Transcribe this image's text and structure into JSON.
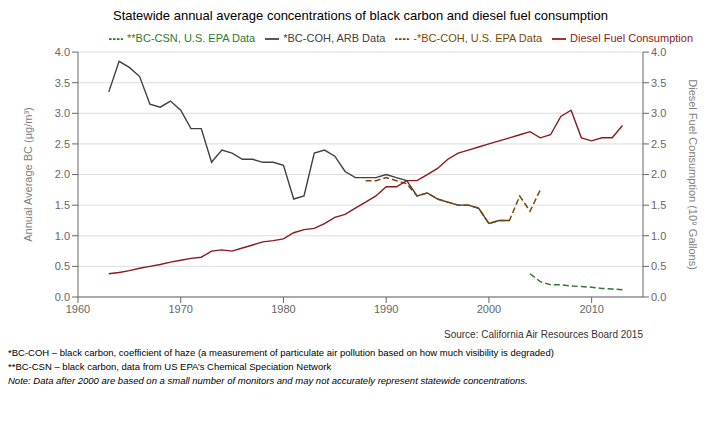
{
  "chart_data": {
    "type": "line",
    "title": "Statewide annual average concentrations of black carbon and diesel fuel consumption",
    "ylabel": "Annual Average BC (μg/m³)",
    "y2label": "Diesel Fuel Consumption (10⁹ Gallons)",
    "xlim": [
      1960,
      2015
    ],
    "xticks": [
      1960,
      1970,
      1980,
      1990,
      2000,
      2010
    ],
    "ylim": [
      0.0,
      4.0
    ],
    "yticks": [
      {
        "value": 0.0,
        "label": "0.0"
      },
      0.5,
      {
        "value": 1.0,
        "label": "1.0"
      },
      1.5,
      {
        "value": 2.0,
        "label": "2.0"
      },
      2.5,
      {
        "value": 3.0,
        "label": "3.0"
      },
      3.5,
      {
        "value": 4.0,
        "label": "4.0"
      }
    ],
    "y2lim": [
      0.0,
      4.0
    ],
    "y2ticks": [
      {
        "value": 0.0,
        "label": "0.0"
      },
      0.5,
      {
        "value": 1.0,
        "label": "1.0"
      },
      1.5,
      {
        "value": 2.0,
        "label": "2.0"
      },
      2.5,
      {
        "value": 3.0,
        "label": "3.0"
      },
      3.5,
      {
        "value": 4.0,
        "label": "4.0"
      }
    ],
    "grid": "y",
    "legend": "upper right",
    "annotations": [
      "Source: California Air Resources Board 2015",
      "*BC-COH – black carbon, coefficient of haze (a measurement of particulate air pollution based on how much visibility is degraded)",
      "**BC-CSN – black carbon, data from US EPA’s Chemical Speciation Network",
      "Note: Data after 2000 are based on a small number of monitors and may not accurately represent statewide concentrations."
    ],
    "series": [
      {
        "name": "*BC-COH, ARB Data",
        "color": "#404040",
        "line_style": "solid",
        "axis": "y",
        "x": [
          1963,
          1964,
          1965,
          1966,
          1967,
          1968,
          1969,
          1970,
          1971,
          1972,
          1973,
          1974,
          1975,
          1976,
          1977,
          1978,
          1979,
          1980,
          1981,
          1982,
          1983,
          1984,
          1985,
          1986,
          1987,
          1988,
          1989,
          1990,
          1991,
          1992,
          1993,
          1994,
          1995,
          1996,
          1997,
          1998,
          1999,
          2000,
          2001,
          2002
        ],
        "values": [
          3.35,
          3.85,
          3.75,
          3.6,
          3.15,
          3.1,
          3.2,
          3.05,
          2.75,
          2.75,
          2.2,
          2.4,
          2.35,
          2.25,
          2.25,
          2.2,
          2.2,
          2.15,
          1.6,
          1.65,
          2.35,
          2.4,
          2.3,
          2.05,
          1.95,
          1.95,
          1.95,
          2.0,
          1.95,
          1.9,
          1.65,
          1.7,
          1.6,
          1.55,
          1.5,
          1.5,
          1.45,
          1.2,
          1.25,
          1.25
        ]
      },
      {
        "name": "-*BC-COH, U.S. EPA Data",
        "color": "#7B4A00",
        "line_style": "dashed",
        "axis": "y",
        "x": [
          1988,
          1989,
          1990,
          1991,
          1992,
          1993,
          1994,
          1995,
          1996,
          1997,
          1998,
          1999,
          2000,
          2001,
          2002,
          2003,
          2004,
          2005
        ],
        "values": [
          1.9,
          1.9,
          1.95,
          1.9,
          1.85,
          1.65,
          1.7,
          1.6,
          1.55,
          1.5,
          1.5,
          1.45,
          1.2,
          1.25,
          1.25,
          1.65,
          1.4,
          1.75
        ]
      },
      {
        "name": "**BC-CSN, U.S. EPA Data",
        "color": "#2E7B2E",
        "line_style": "dashed",
        "axis": "y",
        "x": [
          2004,
          2005,
          2006,
          2007,
          2008,
          2009,
          2010,
          2011,
          2012,
          2013
        ],
        "values": [
          0.38,
          0.25,
          0.2,
          0.2,
          0.18,
          0.17,
          0.16,
          0.14,
          0.13,
          0.12
        ]
      },
      {
        "name": "Diesel Fuel Consumption",
        "color": "#8B1A1A",
        "line_style": "solid",
        "axis": "y2",
        "x": [
          1963,
          1964,
          1965,
          1966,
          1967,
          1968,
          1969,
          1970,
          1971,
          1972,
          1973,
          1974,
          1975,
          1976,
          1977,
          1978,
          1979,
          1980,
          1981,
          1982,
          1983,
          1984,
          1985,
          1986,
          1987,
          1988,
          1989,
          1990,
          1991,
          1992,
          1993,
          1994,
          1995,
          1996,
          1997,
          1998,
          1999,
          2000,
          2001,
          2002,
          2003,
          2004,
          2005,
          2006,
          2007,
          2008,
          2009,
          2010,
          2011,
          2012,
          2013
        ],
        "values": [
          0.38,
          0.4,
          0.43,
          0.47,
          0.5,
          0.53,
          0.57,
          0.6,
          0.63,
          0.65,
          0.75,
          0.77,
          0.75,
          0.8,
          0.85,
          0.9,
          0.92,
          0.95,
          1.05,
          1.1,
          1.12,
          1.2,
          1.3,
          1.35,
          1.45,
          1.55,
          1.65,
          1.8,
          1.8,
          1.9,
          1.9,
          2.0,
          2.1,
          2.25,
          2.35,
          2.4,
          2.45,
          2.5,
          2.55,
          2.6,
          2.65,
          2.7,
          2.6,
          2.65,
          2.95,
          3.05,
          2.6,
          2.55,
          2.6,
          2.6,
          2.8
        ]
      }
    ]
  }
}
